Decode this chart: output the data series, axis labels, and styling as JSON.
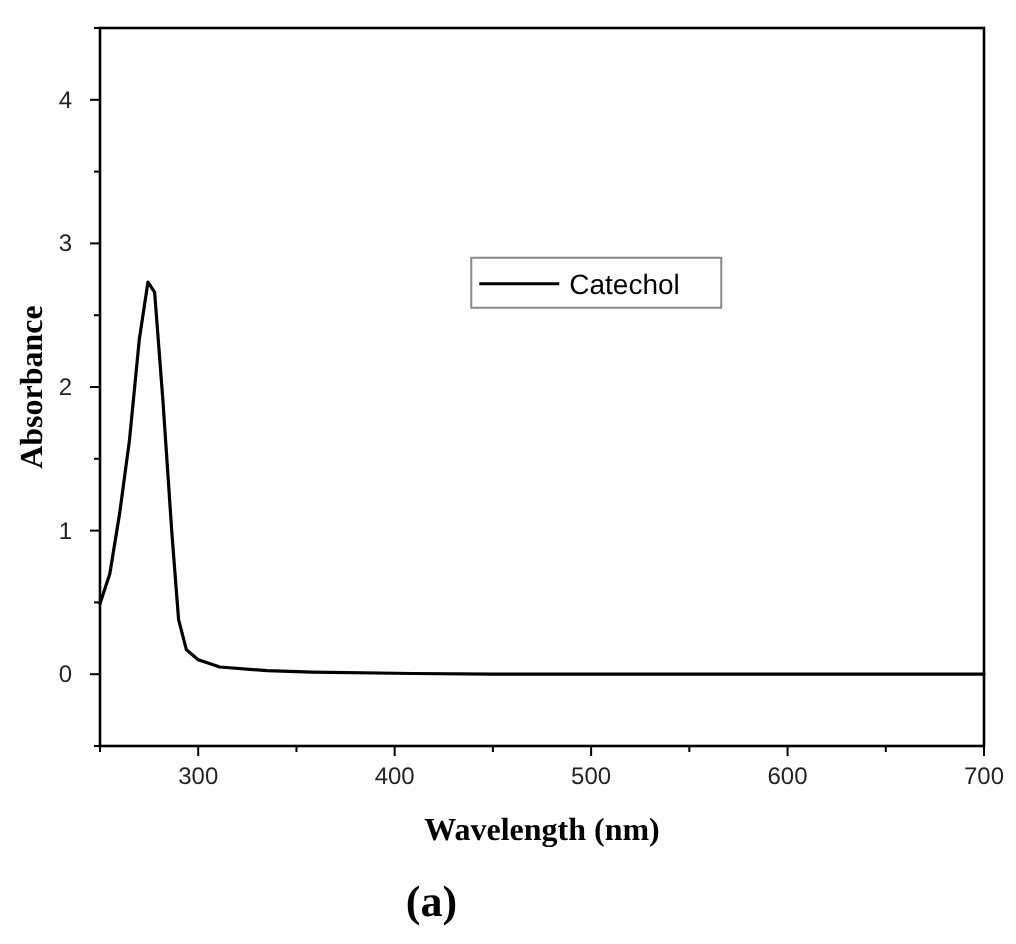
{
  "chart_data": {
    "type": "line",
    "xlabel": "Wavelength (nm)",
    "ylabel": "Absorbance",
    "annotations": [
      "(a)"
    ],
    "xlim": [
      250,
      700
    ],
    "ylim": [
      -0.5,
      4.5
    ],
    "xticks": [
      {
        "value": 250,
        "label": null
      },
      300,
      {
        "value": 350,
        "label": null
      },
      400,
      {
        "value": 450,
        "label": null
      },
      500,
      {
        "value": 550,
        "label": null
      },
      600,
      {
        "value": 650,
        "label": null
      },
      700
    ],
    "yticks": [
      {
        "value": -0.5,
        "label": null
      },
      0,
      {
        "value": 0.5,
        "label": null
      },
      1,
      {
        "value": 1.5,
        "label": null
      },
      2,
      {
        "value": 2.5,
        "label": null
      },
      3,
      {
        "value": 3.5,
        "label": null
      },
      4,
      {
        "value": 4.5,
        "label": null
      }
    ],
    "grid": false,
    "legend": "top",
    "marker": "none",
    "line_style": "solid",
    "series": [
      {
        "name": "Catechol",
        "color": "#000000",
        "x": [
          250,
          255,
          260,
          265,
          270,
          274.4,
          277.8,
          282,
          286.6,
          290,
          294,
          300,
          311,
          335,
          358,
          409,
          450,
          550,
          700
        ],
        "values": [
          0.49,
          0.7,
          1.12,
          1.63,
          2.33,
          2.73,
          2.66,
          1.91,
          0.98,
          0.38,
          0.17,
          0.1,
          0.05,
          0.025,
          0.015,
          0.005,
          0,
          0,
          0
        ]
      }
    ]
  }
}
